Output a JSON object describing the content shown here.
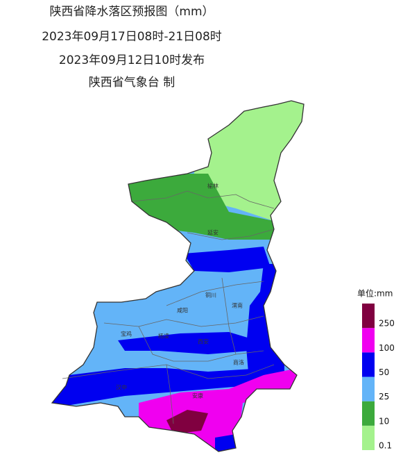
{
  "header": {
    "lines": [
      "陕西省降水落区预报图（mm）",
      "2023年09月17日08时-21日08时",
      "2023年09月12日10时发布",
      "陕西省气象台 制"
    ]
  },
  "cities": [
    {
      "name": "榆林"
    },
    {
      "name": "延安"
    },
    {
      "name": "铜川"
    },
    {
      "name": "渭南"
    },
    {
      "name": "咸阳"
    },
    {
      "name": "宝鸡"
    },
    {
      "name": "杨凌"
    },
    {
      "name": "西安"
    },
    {
      "name": "商洛"
    },
    {
      "name": "汉中"
    },
    {
      "name": "安康"
    }
  ],
  "legend": {
    "title": "单位:mm",
    "items": [
      {
        "label": "0.1",
        "color": "#a4f28d"
      },
      {
        "label": "10",
        "color": "#3caa3c"
      },
      {
        "label": "25",
        "color": "#63b4f8"
      },
      {
        "label": "50",
        "color": "#0000f0"
      },
      {
        "label": "100",
        "color": "#f000f0"
      },
      {
        "label": "250",
        "color": "#800040"
      }
    ]
  }
}
